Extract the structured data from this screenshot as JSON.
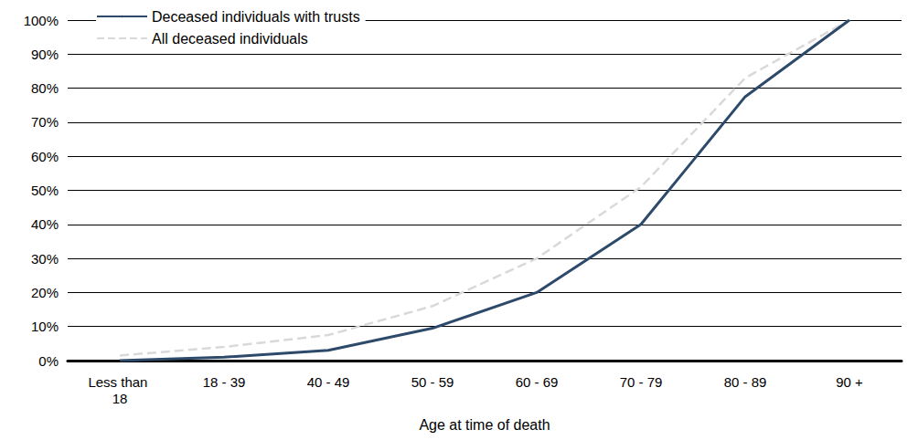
{
  "chart_data": {
    "type": "line",
    "x_label": "Age at time of death",
    "categories": [
      "Less than 18",
      "18 - 39",
      "40 - 49",
      "50 - 59",
      "60 - 69",
      "70 - 79",
      "80 - 89",
      "90 +"
    ],
    "series": [
      {
        "name": "Deceased individuals with trusts",
        "color": "#2e4a6b",
        "line_style": "solid",
        "values": [
          0,
          1,
          3,
          9.5,
          20,
          40,
          77.5,
          100
        ]
      },
      {
        "name": "All deceased individuals",
        "color": "#d9d9d9",
        "line_style": "dashed",
        "values": [
          1.5,
          4,
          7.5,
          16,
          30,
          51,
          83,
          100
        ]
      }
    ],
    "ylim": [
      0,
      100
    ],
    "yticks": [
      {
        "value": 0,
        "label": "0%"
      },
      {
        "value": 10,
        "label": "10%"
      },
      {
        "value": 20,
        "label": "20%"
      },
      {
        "value": 30,
        "label": "30%"
      },
      {
        "value": 40,
        "label": "40%"
      },
      {
        "value": 50,
        "label": "50%"
      },
      {
        "value": 60,
        "label": "60%"
      },
      {
        "value": 70,
        "label": "70%"
      },
      {
        "value": 80,
        "label": "80%"
      },
      {
        "value": 90,
        "label": "90%"
      },
      {
        "value": 100,
        "label": "100%"
      }
    ],
    "grid": true,
    "legend": "upper left"
  }
}
